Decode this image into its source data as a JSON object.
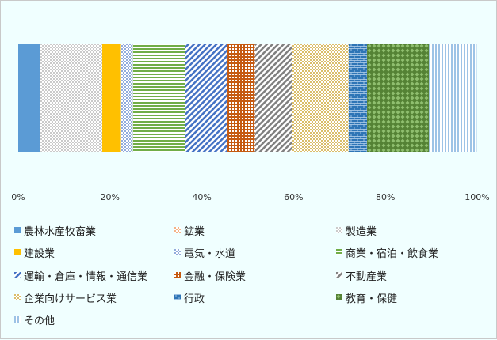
{
  "chart_data": {
    "type": "bar",
    "orientation": "horizontal-stacked-100",
    "title": "",
    "xlabel": "",
    "ylabel": "",
    "xlim": [
      0,
      100
    ],
    "grid": false,
    "legend_position": "bottom",
    "ticks": [
      "0%",
      "20%",
      "40%",
      "60%",
      "80%",
      "100%"
    ],
    "series": [
      {
        "name": "農林水産牧畜業",
        "value": 4.7,
        "color": "#5b9bd5",
        "pattern": "solid"
      },
      {
        "name": "鉱業",
        "value": 0.1,
        "color": "#ed7d31",
        "pattern": "dots"
      },
      {
        "name": "製造業",
        "value": 13.5,
        "color": "#a5a5a5",
        "pattern": "dots"
      },
      {
        "name": "建設業",
        "value": 4.1,
        "color": "#ffc000",
        "pattern": "solid"
      },
      {
        "name": "電気・水道",
        "value": 2.6,
        "color": "#4472c4",
        "pattern": "dots"
      },
      {
        "name": "商業・宿泊・飲食業",
        "value": 11.4,
        "color": "#70ad47",
        "pattern": "hlines"
      },
      {
        "name": "運輸・倉庫・情報・通信業",
        "value": 9.2,
        "color": "#4472c4",
        "pattern": "diag"
      },
      {
        "name": "金融・保険業",
        "value": 6.0,
        "color": "#c55a11",
        "pattern": "grid"
      },
      {
        "name": "不動産業",
        "value": 8.0,
        "color": "#808080",
        "pattern": "diag"
      },
      {
        "name": "企業向けサービス業",
        "value": 12.4,
        "color": "#bf9000",
        "pattern": "dots"
      },
      {
        "name": "行政",
        "value": 4.0,
        "color": "#2e75b6",
        "pattern": "brick"
      },
      {
        "name": "教育・保健",
        "value": 13.5,
        "color": "#548235",
        "pattern": "diamond"
      },
      {
        "name": "その他",
        "value": 10.4,
        "color": "#9dc3e6",
        "pattern": "vlines"
      }
    ]
  }
}
